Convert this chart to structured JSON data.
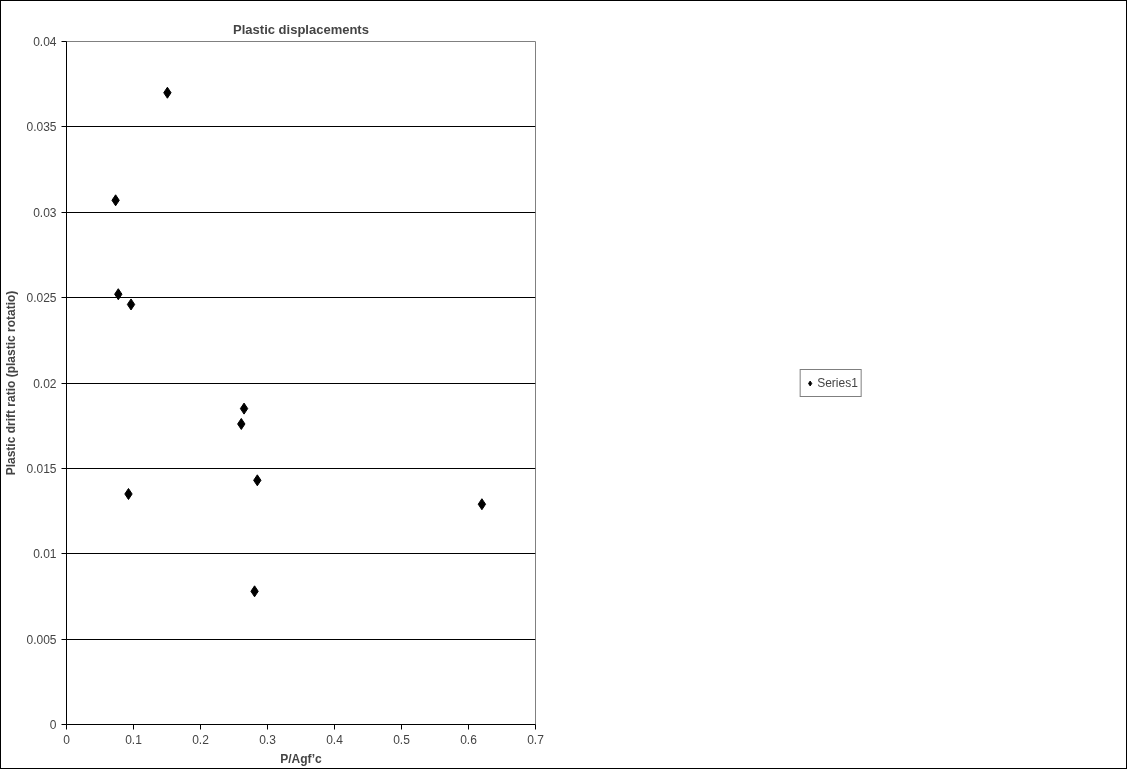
{
  "chart_data": {
    "type": "scatter",
    "title": "Plastic displacements",
    "xlabel": "P/Agf’c",
    "ylabel": "Plastic drift ratio (plastic rotatio)",
    "series": [
      {
        "name": "Series1",
        "color": "#000000",
        "x": [
          0.1506,
          0.0733,
          0.0773,
          0.0963,
          0.0925,
          0.265,
          0.2609,
          0.2848,
          0.2807,
          0.62
        ],
        "values": [
          0.037,
          0.0307,
          0.0252,
          0.0246,
          0.0135,
          0.0185,
          0.0176,
          0.0143,
          0.0078,
          0.0129
        ]
      }
    ],
    "xlim": [
      0,
      0.7
    ],
    "xticks": [
      0,
      0.1,
      0.2,
      0.3,
      0.4,
      0.5,
      0.6,
      0.7
    ],
    "ylim": [
      0,
      0.04
    ],
    "yticks": [
      0,
      0.005,
      0.01,
      0.015,
      0.02,
      0.025,
      0.03,
      0.035,
      0.04
    ],
    "grid": "y",
    "legend": "right",
    "marker": "diamond"
  }
}
